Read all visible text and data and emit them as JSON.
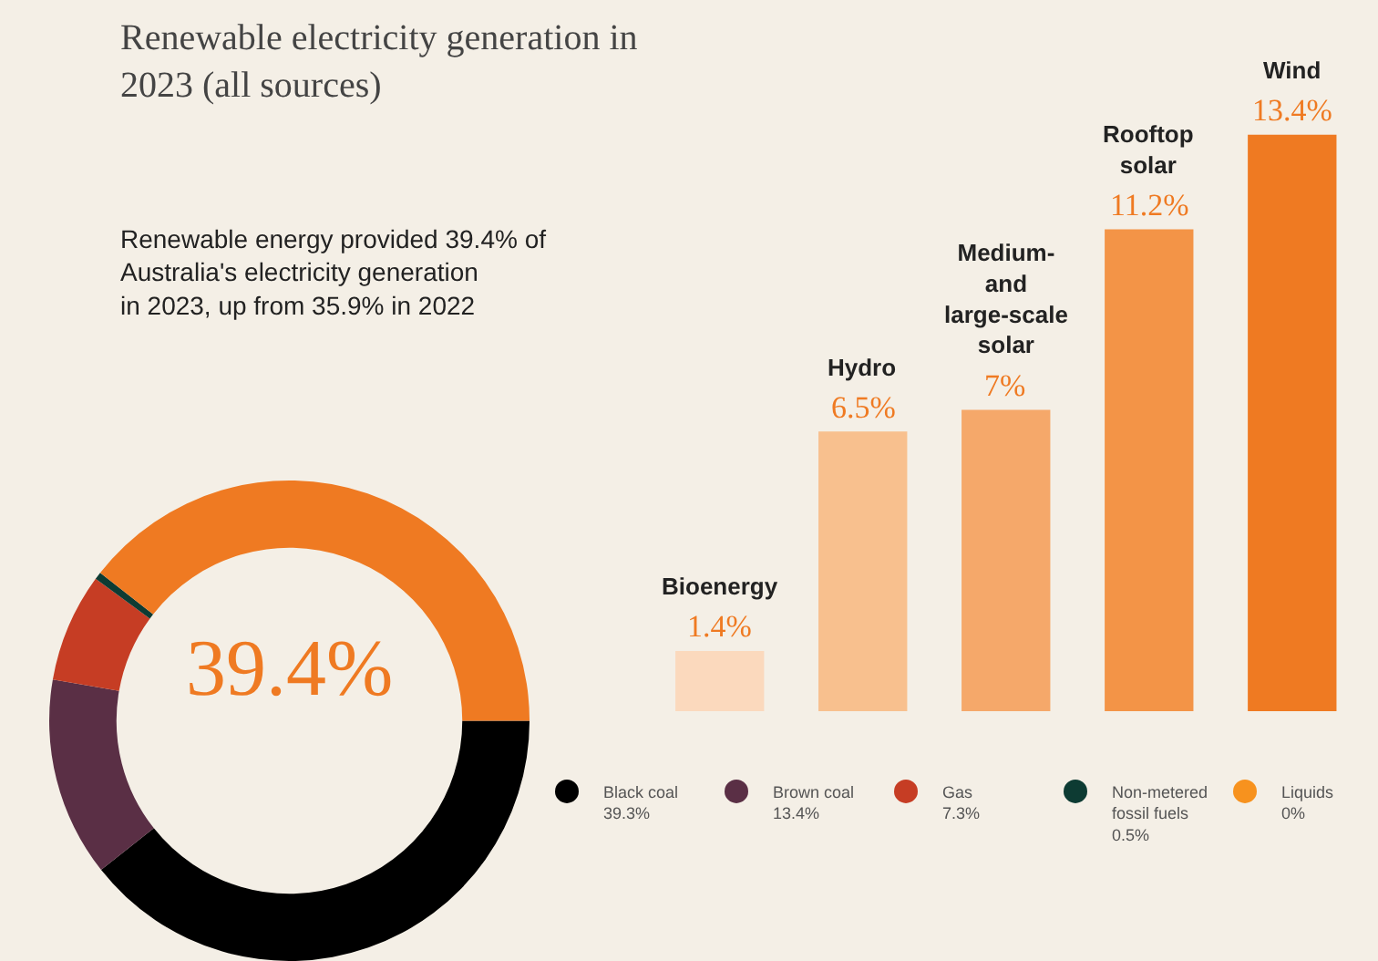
{
  "chart_data": [
    {
      "type": "donut",
      "title": "Renewable electricity generation in 2023 (all sources)",
      "subtitle": "Renewable energy provided 39.4% of Australia's electricity generation in 2023, up from 35.9% in 2022",
      "categories": [
        "Black coal",
        "Brown coal",
        "Gas",
        "Non-metered fossil fuels",
        "Liquids",
        null
      ],
      "values": [
        39.3,
        13.4,
        7.3,
        0.5,
        0,
        39.4
      ],
      "colors": [
        "#000000",
        "#5a2f45",
        "#c63d24",
        "#0d3b33",
        "#f7921e",
        "#ef7a22"
      ],
      "value_labels": [
        "39.3%",
        "13.4%",
        "7.3%",
        "0.5%",
        "0%",
        "39.4%"
      ],
      "legend": "bottom"
    },
    {
      "type": "bar",
      "categories": [
        "Bioenergy",
        "Hydro",
        "Medium- and large-scale solar",
        "Rooftop solar",
        "Wind"
      ],
      "values": [
        1.4,
        6.5,
        7,
        11.2,
        13.4
      ],
      "colors": [
        "#fbd9bd",
        "#f8c08e",
        "#f5a86a",
        "#f39447",
        "#ef7a22"
      ],
      "value_labels": [
        "1.4%",
        "6.5%",
        "7%",
        "11.2%",
        "13.4%"
      ]
    }
  ]
}
